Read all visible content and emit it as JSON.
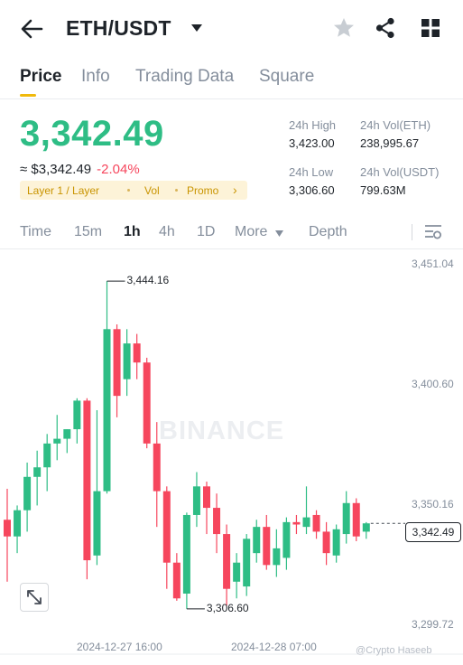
{
  "header": {
    "pair": "ETH/USDT",
    "icons": [
      "back-arrow-icon",
      "caret-down-icon",
      "star-icon",
      "share-icon",
      "grid-icon"
    ]
  },
  "tabs": [
    {
      "label": "Price",
      "active": true
    },
    {
      "label": "Info",
      "active": false
    },
    {
      "label": "Trading Data",
      "active": false
    },
    {
      "label": "Square",
      "active": false
    }
  ],
  "price": {
    "last": "3,342.49",
    "fiat": "≈ $3,342.49",
    "change": "-2.04%",
    "tags": [
      "Layer 1 / Layer",
      "Vol",
      "Promo"
    ],
    "tag_more": "›"
  },
  "stats": {
    "high_label": "24h High",
    "high_value": "3,423.00",
    "vol_eth_label": "24h Vol(ETH)",
    "vol_eth_value": "238,995.67",
    "low_label": "24h Low",
    "low_value": "3,306.60",
    "vol_usdt_label": "24h Vol(USDT)",
    "vol_usdt_value": "799.63M"
  },
  "intervals": [
    {
      "label": "Time",
      "active": false
    },
    {
      "label": "15m",
      "active": false
    },
    {
      "label": "1h",
      "active": true
    },
    {
      "label": "4h",
      "active": false
    },
    {
      "label": "1D",
      "active": false
    },
    {
      "label": "More",
      "active": false
    },
    {
      "label": "Depth",
      "active": false
    }
  ],
  "colors": {
    "up": "#2ebd85",
    "down": "#f6465d",
    "accent": "#f0b90b"
  },
  "chart_data": {
    "type": "candlestick",
    "y_ticks": [
      "3,451.04",
      "3,400.60",
      "3,350.16",
      "3,299.72"
    ],
    "y_tick_values": [
      3451.04,
      3400.6,
      3350.16,
      3299.72
    ],
    "x_ticks": [
      {
        "label": "2024-12-27 16:00",
        "index": 8
      },
      {
        "label": "2024-12-28 07:00",
        "index": 23
      }
    ],
    "last_price": "3,342.49",
    "last_price_value": 3342.49,
    "high_label": "3,444.16",
    "high_index": 9,
    "low_label": "3,306.60",
    "low_index": 17,
    "watermark": "BINANCE",
    "credit": "@Crypto Haseeb",
    "candles": [
      {
        "o": 3344,
        "h": 3357,
        "l": 3318,
        "c": 3337
      },
      {
        "o": 3337,
        "h": 3350,
        "l": 3330,
        "c": 3348
      },
      {
        "o": 3348,
        "h": 3368,
        "l": 3339,
        "c": 3362
      },
      {
        "o": 3362,
        "h": 3373,
        "l": 3350,
        "c": 3366
      },
      {
        "o": 3366,
        "h": 3380,
        "l": 3356,
        "c": 3376
      },
      {
        "o": 3376,
        "h": 3388,
        "l": 3369,
        "c": 3378
      },
      {
        "o": 3378,
        "h": 3382,
        "l": 3372,
        "c": 3382
      },
      {
        "o": 3382,
        "h": 3395,
        "l": 3376,
        "c": 3394
      },
      {
        "o": 3394,
        "h": 3395,
        "l": 3319,
        "c": 3327
      },
      {
        "o": 3329,
        "h": 3390,
        "l": 3325,
        "c": 3356
      },
      {
        "o": 3356,
        "h": 3444.16,
        "l": 3355,
        "c": 3424
      },
      {
        "o": 3424,
        "h": 3426,
        "l": 3387,
        "c": 3396
      },
      {
        "o": 3403,
        "h": 3424,
        "l": 3396,
        "c": 3418
      },
      {
        "o": 3418,
        "h": 3422,
        "l": 3403,
        "c": 3410
      },
      {
        "o": 3410,
        "h": 3412,
        "l": 3374,
        "c": 3376
      },
      {
        "o": 3376,
        "h": 3385,
        "l": 3341,
        "c": 3356
      },
      {
        "o": 3356,
        "h": 3358,
        "l": 3315,
        "c": 3326
      },
      {
        "o": 3326,
        "h": 3330,
        "l": 3310,
        "c": 3311
      },
      {
        "o": 3313,
        "h": 3347,
        "l": 3306.6,
        "c": 3346
      },
      {
        "o": 3346,
        "h": 3364,
        "l": 3341,
        "c": 3358
      },
      {
        "o": 3358,
        "h": 3360,
        "l": 3338,
        "c": 3349
      },
      {
        "o": 3349,
        "h": 3355,
        "l": 3330,
        "c": 3338
      },
      {
        "o": 3338,
        "h": 3342,
        "l": 3308,
        "c": 3315
      },
      {
        "o": 3318,
        "h": 3330,
        "l": 3311,
        "c": 3326
      },
      {
        "o": 3316,
        "h": 3338,
        "l": 3312,
        "c": 3336
      },
      {
        "o": 3330,
        "h": 3344,
        "l": 3326,
        "c": 3341
      },
      {
        "o": 3341,
        "h": 3346,
        "l": 3323,
        "c": 3325
      },
      {
        "o": 3325,
        "h": 3340,
        "l": 3320,
        "c": 3332
      },
      {
        "o": 3328,
        "h": 3345,
        "l": 3323,
        "c": 3343
      },
      {
        "o": 3343,
        "h": 3346,
        "l": 3338,
        "c": 3342
      },
      {
        "o": 3341,
        "h": 3358,
        "l": 3338,
        "c": 3345
      },
      {
        "o": 3346,
        "h": 3348,
        "l": 3336,
        "c": 3339
      },
      {
        "o": 3339,
        "h": 3343,
        "l": 3325,
        "c": 3330
      },
      {
        "o": 3329,
        "h": 3342,
        "l": 3326,
        "c": 3340
      },
      {
        "o": 3338,
        "h": 3356,
        "l": 3334,
        "c": 3351
      },
      {
        "o": 3351,
        "h": 3353,
        "l": 3335,
        "c": 3337
      },
      {
        "o": 3339,
        "h": 3343,
        "l": 3336,
        "c": 3342.49
      }
    ]
  }
}
